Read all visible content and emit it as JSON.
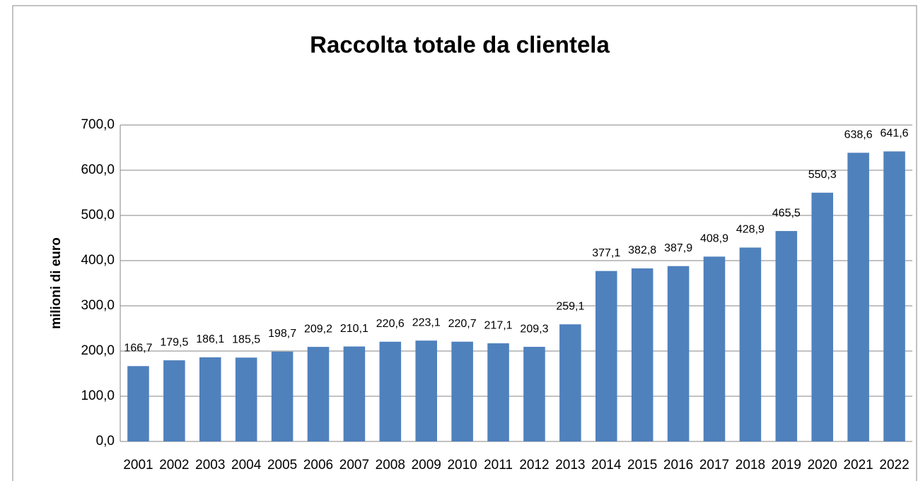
{
  "chart_data": {
    "type": "bar",
    "title": "Raccolta totale da clientela",
    "y_label": "milioni di euro",
    "categories": [
      "2001",
      "2002",
      "2003",
      "2004",
      "2005",
      "2006",
      "2007",
      "2008",
      "2009",
      "2010",
      "2011",
      "2012",
      "2013",
      "2014",
      "2015",
      "2016",
      "2017",
      "2018",
      "2019",
      "2020",
      "2021",
      "2022"
    ],
    "values": [
      166.7,
      179.5,
      186.1,
      185.5,
      198.7,
      209.2,
      210.1,
      220.6,
      223.1,
      220.7,
      217.1,
      209.3,
      259.1,
      377.1,
      382.8,
      387.9,
      408.9,
      428.9,
      465.5,
      550.3,
      638.6,
      641.6
    ],
    "value_labels": [
      "166,7",
      "179,5",
      "186,1",
      "185,5",
      "198,7",
      "209,2",
      "210,1",
      "220,6",
      "223,1",
      "220,7",
      "217,1",
      "209,3",
      "259,1",
      "377,1",
      "382,8",
      "387,9",
      "408,9",
      "428,9",
      "465,5",
      "550,3",
      "638,6",
      "641,6"
    ],
    "color": "#4f81bd",
    "ylim": [
      0,
      700
    ],
    "yticks": [
      {
        "value": 0,
        "label": "0,0"
      },
      {
        "value": 100,
        "label": "100,0"
      },
      {
        "value": 200,
        "label": "200,0"
      },
      {
        "value": 300,
        "label": "300,0"
      },
      {
        "value": 400,
        "label": "400,0"
      },
      {
        "value": 500,
        "label": "500,0"
      },
      {
        "value": 600,
        "label": "600,0"
      },
      {
        "value": 700,
        "label": "700,0"
      }
    ],
    "grid": true
  }
}
